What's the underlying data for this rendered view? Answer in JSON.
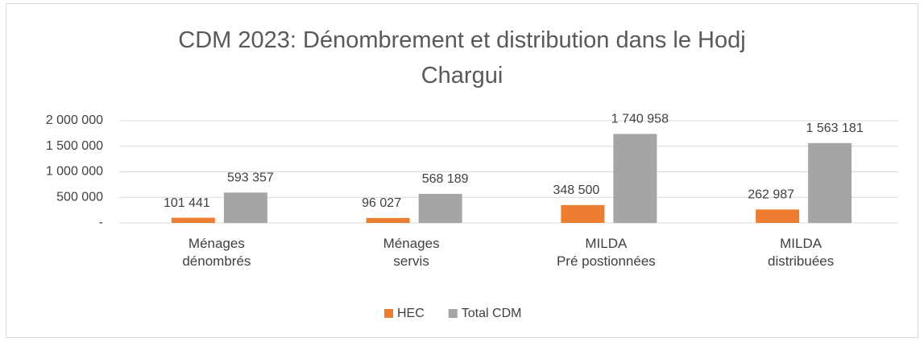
{
  "chart_data": {
    "type": "bar",
    "title": "CDM 2023: Dénombrement  et distribution dans le Hodj\nChargui",
    "categories": [
      "Ménages\ndénombrés",
      "Ménages\nservis",
      "MILDA\nPré postionnées",
      "MILDA\ndistribuées"
    ],
    "series": [
      {
        "name": "HEC",
        "color": "#ed7d31",
        "values": [
          101441,
          96027,
          348500,
          262987
        ],
        "value_labels": [
          "101 441",
          "96 027",
          "348 500",
          "262 987"
        ]
      },
      {
        "name": "Total CDM",
        "color": "#a5a5a5",
        "values": [
          593357,
          568189,
          1740958,
          1563181
        ],
        "value_labels": [
          "593 357",
          "568 189",
          "1 740 958",
          "1 563 181"
        ]
      }
    ],
    "ylim": [
      0,
      2000000
    ],
    "yticks": [
      {
        "value": 0,
        "label": "-"
      },
      {
        "value": 500000,
        "label": "500 000"
      },
      {
        "value": 1000000,
        "label": "1 000 000"
      },
      {
        "value": 1500000,
        "label": "1 500 000"
      },
      {
        "value": 2000000,
        "label": "2 000 000"
      }
    ],
    "grid": true,
    "legend": "bottom"
  }
}
